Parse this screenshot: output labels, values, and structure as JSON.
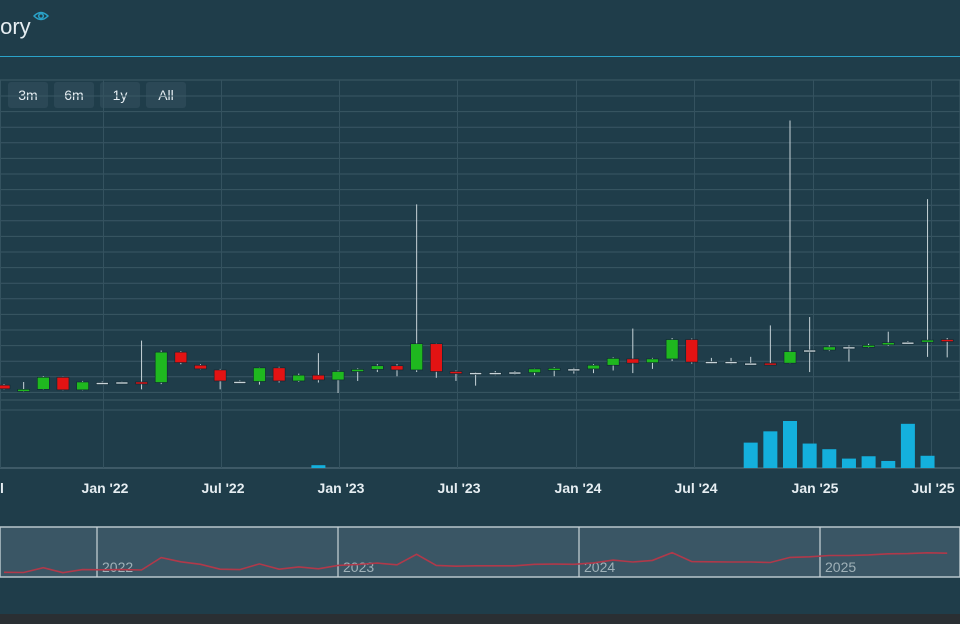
{
  "header": {
    "title": "tory",
    "icon": "eye-icon"
  },
  "range_buttons": [
    {
      "label": ""
    },
    {
      "label": "3m"
    },
    {
      "label": "6m"
    },
    {
      "label": "1y"
    },
    {
      "label": "All"
    }
  ],
  "colors": {
    "up": "#1fb81f",
    "down": "#e31313",
    "volume": "#14b0dd",
    "navigator_line": "#b0394a",
    "accent": "#2aa3c9"
  },
  "chart_data": {
    "type": "candlestick",
    "x_tick_labels": [
      "l",
      "Jan '22",
      "Jul '22",
      "Jan '23",
      "Jul '23",
      "Jan '24",
      "Jul '24",
      "Jan '25",
      "Jul '25"
    ],
    "navigator_labels": [
      "2022",
      "2023",
      "2024",
      "2025"
    ],
    "candles": [
      {
        "m": 0.0,
        "dir": "down",
        "o": 3.0,
        "c": 1.6,
        "h": 3.4,
        "l": 1.4
      },
      {
        "m": 1.0,
        "dir": "up",
        "o": 0.6,
        "c": 1.4,
        "h": 4.2,
        "l": 0.4
      },
      {
        "m": 2.0,
        "dir": "up",
        "o": 1.4,
        "c": 6.0,
        "h": 6.4,
        "l": 1.2
      },
      {
        "m": 3.0,
        "dir": "down",
        "o": 6.0,
        "c": 1.2,
        "h": 6.2,
        "l": 1.0
      },
      {
        "m": 4.0,
        "dir": "up",
        "o": 1.2,
        "c": 4.2,
        "h": 4.6,
        "l": 1.0
      },
      {
        "m": 5.0,
        "dir": "flat",
        "o": 4.0,
        "c": 4.0,
        "h": 4.4,
        "l": 3.6
      },
      {
        "m": 6.0,
        "dir": "flat",
        "o": 4.2,
        "c": 4.2,
        "h": 4.4,
        "l": 4.0
      },
      {
        "m": 7.0,
        "dir": "down",
        "o": 4.2,
        "c": 3.8,
        "h": 20.0,
        "l": 1.4
      },
      {
        "m": 8.0,
        "dir": "up",
        "o": 4.0,
        "c": 15.6,
        "h": 16.2,
        "l": 3.4
      },
      {
        "m": 9.0,
        "dir": "down",
        "o": 15.6,
        "c": 11.6,
        "h": 16.0,
        "l": 11.0
      },
      {
        "m": 10.0,
        "dir": "down",
        "o": 10.6,
        "c": 9.2,
        "h": 11.0,
        "l": 9.0
      },
      {
        "m": 11.0,
        "dir": "down",
        "o": 8.8,
        "c": 4.6,
        "h": 9.2,
        "l": 1.4
      },
      {
        "m": 12.0,
        "dir": "flat",
        "o": 4.4,
        "c": 4.2,
        "h": 4.8,
        "l": 3.8
      },
      {
        "m": 13.0,
        "dir": "up",
        "o": 4.4,
        "c": 9.6,
        "h": 9.8,
        "l": 3.2
      },
      {
        "m": 14.0,
        "dir": "down",
        "o": 9.6,
        "c": 4.6,
        "h": 10.0,
        "l": 4.0
      },
      {
        "m": 15.0,
        "dir": "up",
        "o": 4.6,
        "c": 6.8,
        "h": 7.4,
        "l": 4.2
      },
      {
        "m": 16.0,
        "dir": "down",
        "o": 6.8,
        "c": 5.0,
        "h": 15.2,
        "l": 4.0
      },
      {
        "m": 17.0,
        "dir": "up",
        "o": 5.0,
        "c": 8.2,
        "h": 8.6,
        "l": 0.0
      },
      {
        "m": 18.0,
        "dir": "up",
        "o": 8.2,
        "c": 9.0,
        "h": 9.4,
        "l": 4.6
      },
      {
        "m": 19.0,
        "dir": "up",
        "o": 9.0,
        "c": 10.4,
        "h": 11.0,
        "l": 8.0
      },
      {
        "m": 20.0,
        "dir": "down",
        "o": 10.4,
        "c": 8.8,
        "h": 11.0,
        "l": 6.4
      },
      {
        "m": 21.0,
        "dir": "up",
        "o": 8.8,
        "c": 18.8,
        "h": 72.0,
        "l": 8.0
      },
      {
        "m": 22.0,
        "dir": "down",
        "o": 18.8,
        "c": 8.2,
        "h": 19.0,
        "l": 5.8
      },
      {
        "m": 23.0,
        "dir": "down",
        "o": 8.2,
        "c": 7.4,
        "h": 8.6,
        "l": 4.6
      },
      {
        "m": 24.0,
        "dir": "flat",
        "o": 7.8,
        "c": 7.8,
        "h": 8.0,
        "l": 2.8
      },
      {
        "m": 25.0,
        "dir": "flat",
        "o": 7.6,
        "c": 7.8,
        "h": 8.4,
        "l": 6.8
      },
      {
        "m": 26.0,
        "dir": "flat",
        "o": 8.0,
        "c": 7.8,
        "h": 8.4,
        "l": 7.0
      },
      {
        "m": 27.0,
        "dir": "up",
        "o": 7.8,
        "c": 9.2,
        "h": 9.4,
        "l": 6.8
      },
      {
        "m": 28.0,
        "dir": "up",
        "o": 9.0,
        "c": 9.4,
        "h": 9.8,
        "l": 6.4
      },
      {
        "m": 29.0,
        "dir": "flat",
        "o": 9.2,
        "c": 9.2,
        "h": 9.6,
        "l": 7.4
      },
      {
        "m": 30.0,
        "dir": "up",
        "o": 9.2,
        "c": 10.6,
        "h": 11.0,
        "l": 7.6
      },
      {
        "m": 31.0,
        "dir": "up",
        "o": 10.6,
        "c": 13.2,
        "h": 13.6,
        "l": 8.6
      },
      {
        "m": 32.0,
        "dir": "down",
        "o": 13.0,
        "c": 11.4,
        "h": 24.6,
        "l": 7.6
      },
      {
        "m": 33.0,
        "dir": "up",
        "o": 11.6,
        "c": 13.0,
        "h": 13.4,
        "l": 9.2
      },
      {
        "m": 34.0,
        "dir": "up",
        "o": 13.0,
        "c": 20.4,
        "h": 21.0,
        "l": 12.2
      },
      {
        "m": 35.0,
        "dir": "down",
        "o": 20.4,
        "c": 11.8,
        "h": 20.8,
        "l": 11.2
      },
      {
        "m": 36.0,
        "dir": "flat",
        "o": 12.0,
        "c": 11.6,
        "h": 13.4,
        "l": 11.2
      },
      {
        "m": 37.0,
        "dir": "flat",
        "o": 12.0,
        "c": 11.4,
        "h": 13.4,
        "l": 11.0
      },
      {
        "m": 38.0,
        "dir": "flat",
        "o": 11.4,
        "c": 11.4,
        "h": 13.8,
        "l": 11.2
      },
      {
        "m": 39.0,
        "dir": "down",
        "o": 11.4,
        "c": 11.0,
        "h": 25.8,
        "l": 10.8
      },
      {
        "m": 40.0,
        "dir": "up",
        "o": 11.4,
        "c": 15.8,
        "h": 104.0,
        "l": 11.2
      },
      {
        "m": 41.0,
        "dir": "flat",
        "o": 16.0,
        "c": 16.4,
        "h": 29.0,
        "l": 8.0
      },
      {
        "m": 42.0,
        "dir": "up",
        "o": 16.4,
        "c": 17.6,
        "h": 18.2,
        "l": 16.0
      },
      {
        "m": 43.0,
        "dir": "flat",
        "o": 17.6,
        "c": 17.6,
        "h": 18.2,
        "l": 12.0
      },
      {
        "m": 44.0,
        "dir": "up",
        "o": 17.6,
        "c": 18.2,
        "h": 18.8,
        "l": 17.2
      },
      {
        "m": 45.0,
        "dir": "up",
        "o": 18.4,
        "c": 19.2,
        "h": 23.4,
        "l": 18.0
      },
      {
        "m": 46.0,
        "dir": "flat",
        "o": 19.2,
        "c": 19.4,
        "h": 19.8,
        "l": 18.8
      },
      {
        "m": 47.0,
        "dir": "up",
        "o": 19.4,
        "c": 20.2,
        "h": 74.0,
        "l": 13.8
      },
      {
        "m": 48.0,
        "dir": "down",
        "o": 20.4,
        "c": 19.8,
        "h": 21.0,
        "l": 13.6
      }
    ],
    "volumes": [
      {
        "m": 16.0,
        "v": 0.06
      },
      {
        "m": 38.0,
        "v": 0.54
      },
      {
        "m": 39.0,
        "v": 0.78
      },
      {
        "m": 40.0,
        "v": 1.0
      },
      {
        "m": 41.0,
        "v": 0.52
      },
      {
        "m": 42.0,
        "v": 0.4
      },
      {
        "m": 43.0,
        "v": 0.2
      },
      {
        "m": 44.0,
        "v": 0.25
      },
      {
        "m": 45.0,
        "v": 0.15
      },
      {
        "m": 46.0,
        "v": 0.94
      },
      {
        "m": 47.0,
        "v": 0.26
      }
    ]
  }
}
